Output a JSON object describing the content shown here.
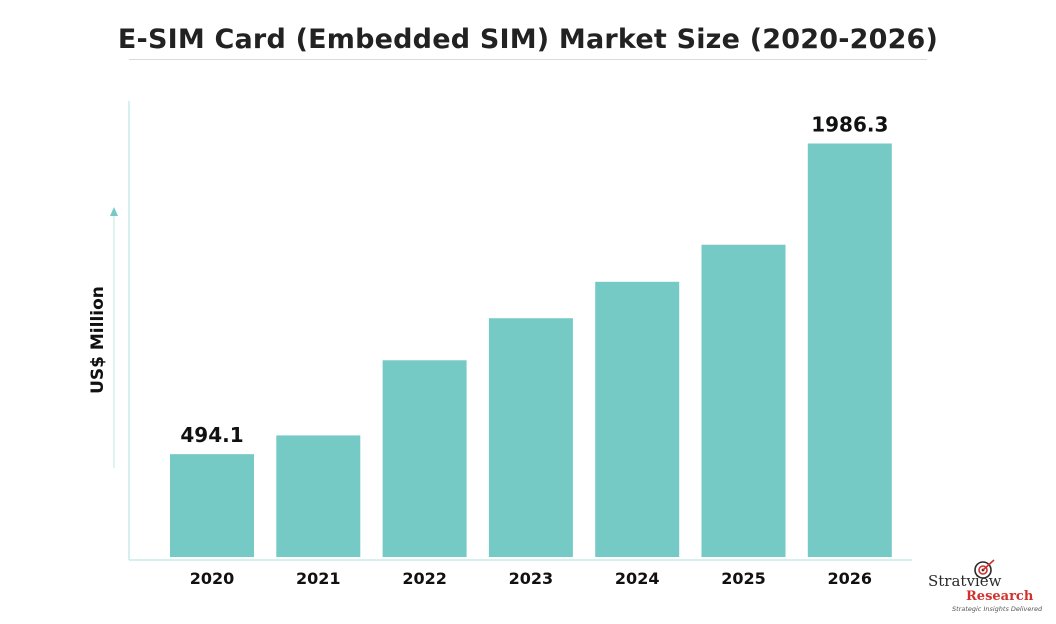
{
  "chart_data": {
    "type": "bar",
    "title": "E-SIM Card (Embedded SIM) Market Size (2020-2026)",
    "ylabel": "US$ Million",
    "xlabel": "",
    "categories": [
      "2020",
      "2021",
      "2022",
      "2023",
      "2024",
      "2025",
      "2026"
    ],
    "values": [
      494.1,
      584,
      945,
      1147,
      1322,
      1500,
      1986.3
    ],
    "data_labels": [
      "494.1",
      "",
      "",
      "",
      "",
      "",
      "1986.3"
    ],
    "ylim": [
      0,
      2000
    ],
    "grid": false,
    "colors": {
      "bar": "#76cac6",
      "axis": "#c9ecea",
      "text": "#111111"
    }
  },
  "branding": {
    "name_part1": "Stratview",
    "name_part2": "Research",
    "trademark": "™",
    "tagline": "Strategic Insights Delivered"
  }
}
